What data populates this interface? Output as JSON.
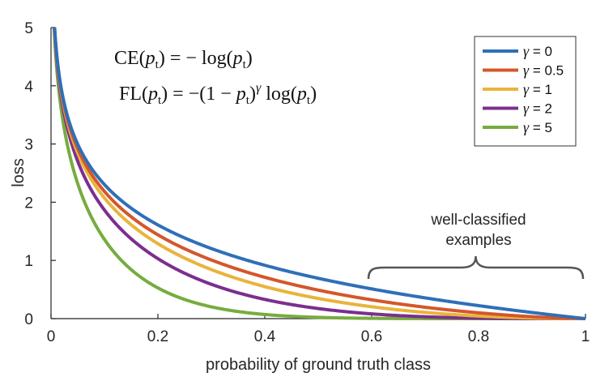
{
  "chart_data": {
    "type": "line",
    "title": "",
    "xlabel": "probability of ground truth class",
    "ylabel": "loss",
    "xlim": [
      0,
      1
    ],
    "ylim": [
      0,
      5
    ],
    "xticks": [
      0,
      0.2,
      0.4,
      0.6,
      0.8,
      1
    ],
    "yticks": [
      0,
      1,
      2,
      3,
      4,
      5
    ],
    "xtick_labels": [
      "0",
      "0.2",
      "0.4",
      "0.6",
      "0.8",
      "1"
    ],
    "ytick_labels": [
      "0",
      "1",
      "2",
      "3",
      "4",
      "5"
    ],
    "legend_position": "top-right",
    "series": [
      {
        "name": "γ = 0",
        "gamma": 0,
        "color": "#2f6fb8"
      },
      {
        "name": "γ = 0.5",
        "gamma": 0.5,
        "color": "#d4572a"
      },
      {
        "name": "γ = 1",
        "gamma": 1,
        "color": "#e9b43c"
      },
      {
        "name": "γ = 2",
        "gamma": 2,
        "color": "#7b2f8e"
      },
      {
        "name": "γ = 5",
        "gamma": 5,
        "color": "#77ac3f"
      }
    ],
    "formula": "FL(p_t) = -(1 - p_t)^γ log(p_t)",
    "annotations": {
      "formula_ce": {
        "lhs": "CE(",
        "p": "p",
        "sub": "t",
        "mid": ") = − log(",
        "end": ")"
      },
      "formula_fl": {
        "lhs": "FL(",
        "p": "p",
        "sub": "t",
        "mid": ") = −(1 − ",
        "gamma": "γ",
        "log": " log(",
        "end": ")"
      },
      "bracket_line1": "well-classified",
      "bracket_line2": "examples",
      "bracket_range": [
        0.6,
        1
      ]
    }
  }
}
